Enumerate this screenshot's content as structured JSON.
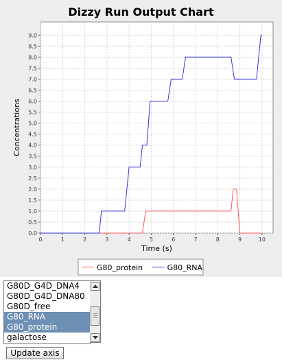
{
  "chart_data": {
    "type": "line",
    "title": "Dizzy Run Output Chart",
    "xlabel": "Time (s)",
    "ylabel": "Concentrations",
    "xlim": [
      0,
      10.5
    ],
    "ylim": [
      0,
      9.6
    ],
    "x_ticks": [
      "0",
      "1",
      "2",
      "3",
      "4",
      "5",
      "6",
      "7",
      "8",
      "9",
      "10"
    ],
    "y_ticks": [
      "0.0",
      "0.5",
      "1.0",
      "1.5",
      "2.0",
      "2.5",
      "3.0",
      "3.5",
      "4.0",
      "4.5",
      "5.0",
      "5.5",
      "6.0",
      "6.5",
      "7.0",
      "7.5",
      "8.0",
      "8.5",
      "9.0"
    ],
    "grid": true,
    "legend_position": "bottom",
    "series": [
      {
        "name": "G80_protein",
        "color": "#ff5555",
        "points": [
          [
            0,
            0
          ],
          [
            4.6,
            0
          ],
          [
            4.75,
            1
          ],
          [
            8.6,
            1
          ],
          [
            8.7,
            2
          ],
          [
            8.85,
            2
          ],
          [
            9.0,
            0
          ],
          [
            10,
            0
          ]
        ]
      },
      {
        "name": "G80_RNA",
        "color": "#3333dd",
        "points": [
          [
            0,
            0
          ],
          [
            2.65,
            0
          ],
          [
            2.75,
            1
          ],
          [
            3.8,
            1
          ],
          [
            4.0,
            3
          ],
          [
            4.5,
            3
          ],
          [
            4.6,
            4
          ],
          [
            4.8,
            4
          ],
          [
            4.95,
            6
          ],
          [
            5.75,
            6
          ],
          [
            5.9,
            7
          ],
          [
            6.4,
            7
          ],
          [
            6.55,
            8
          ],
          [
            8.6,
            8
          ],
          [
            8.75,
            7
          ],
          [
            9.75,
            7
          ],
          [
            9.85,
            8
          ],
          [
            9.95,
            9
          ],
          [
            10,
            9
          ]
        ]
      }
    ]
  },
  "species_list": {
    "items": [
      "G80D_G4D_DNA4",
      "G80D_G4D_DNA80",
      "G80D_free",
      "G80_RNA",
      "G80_protein",
      "galactose"
    ],
    "selected": [
      "G80_RNA",
      "G80_protein"
    ]
  },
  "update_button_label": "Update axis"
}
